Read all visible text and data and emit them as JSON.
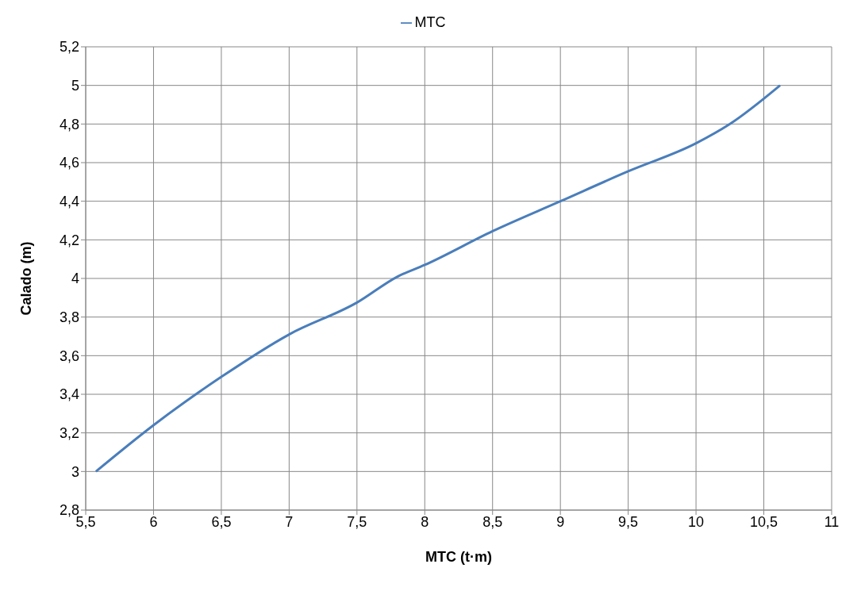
{
  "chart_data": {
    "type": "line",
    "xlabel": "MTC (t·m)",
    "ylabel": "Calado (m)",
    "x": [
      5.575,
      6,
      6.5,
      7,
      7.5,
      7.8,
      8,
      8.5,
      9,
      9.5,
      10,
      10.25,
      10.62
    ],
    "series": [
      {
        "name": "MTC",
        "color": "#4a7ebb",
        "values": [
          3.0,
          3.24,
          3.49,
          3.71,
          3.875,
          4.01,
          4.07,
          4.245,
          4.4,
          4.555,
          4.7,
          4.8,
          5.0
        ]
      }
    ],
    "xlim": [
      5.5,
      11
    ],
    "xticks": [
      {
        "value": 5.5,
        "label": "5,5"
      },
      6,
      {
        "value": 6.5,
        "label": "6,5"
      },
      7,
      {
        "value": 7.5,
        "label": "7,5"
      },
      8,
      {
        "value": 8.5,
        "label": "8,5"
      },
      9,
      {
        "value": 9.5,
        "label": "9,5"
      },
      10,
      {
        "value": 10.5,
        "label": "10,5"
      },
      11
    ],
    "ylim": [
      2.8,
      5.2
    ],
    "yticks": [
      {
        "value": 2.8,
        "label": "2,8"
      },
      3,
      {
        "value": 3.2,
        "label": "3,2"
      },
      {
        "value": 3.4,
        "label": "3,4"
      },
      {
        "value": 3.6,
        "label": "3,6"
      },
      {
        "value": 3.8,
        "label": "3,8"
      },
      4,
      {
        "value": 4.2,
        "label": "4,2"
      },
      {
        "value": 4.4,
        "label": "4,4"
      },
      {
        "value": 4.6,
        "label": "4,6"
      },
      {
        "value": 4.8,
        "label": "4,8"
      },
      5,
      {
        "value": 5.2,
        "label": "5,2"
      }
    ],
    "grid": true,
    "legend": "top",
    "marker": "none",
    "line_style": "solid"
  }
}
